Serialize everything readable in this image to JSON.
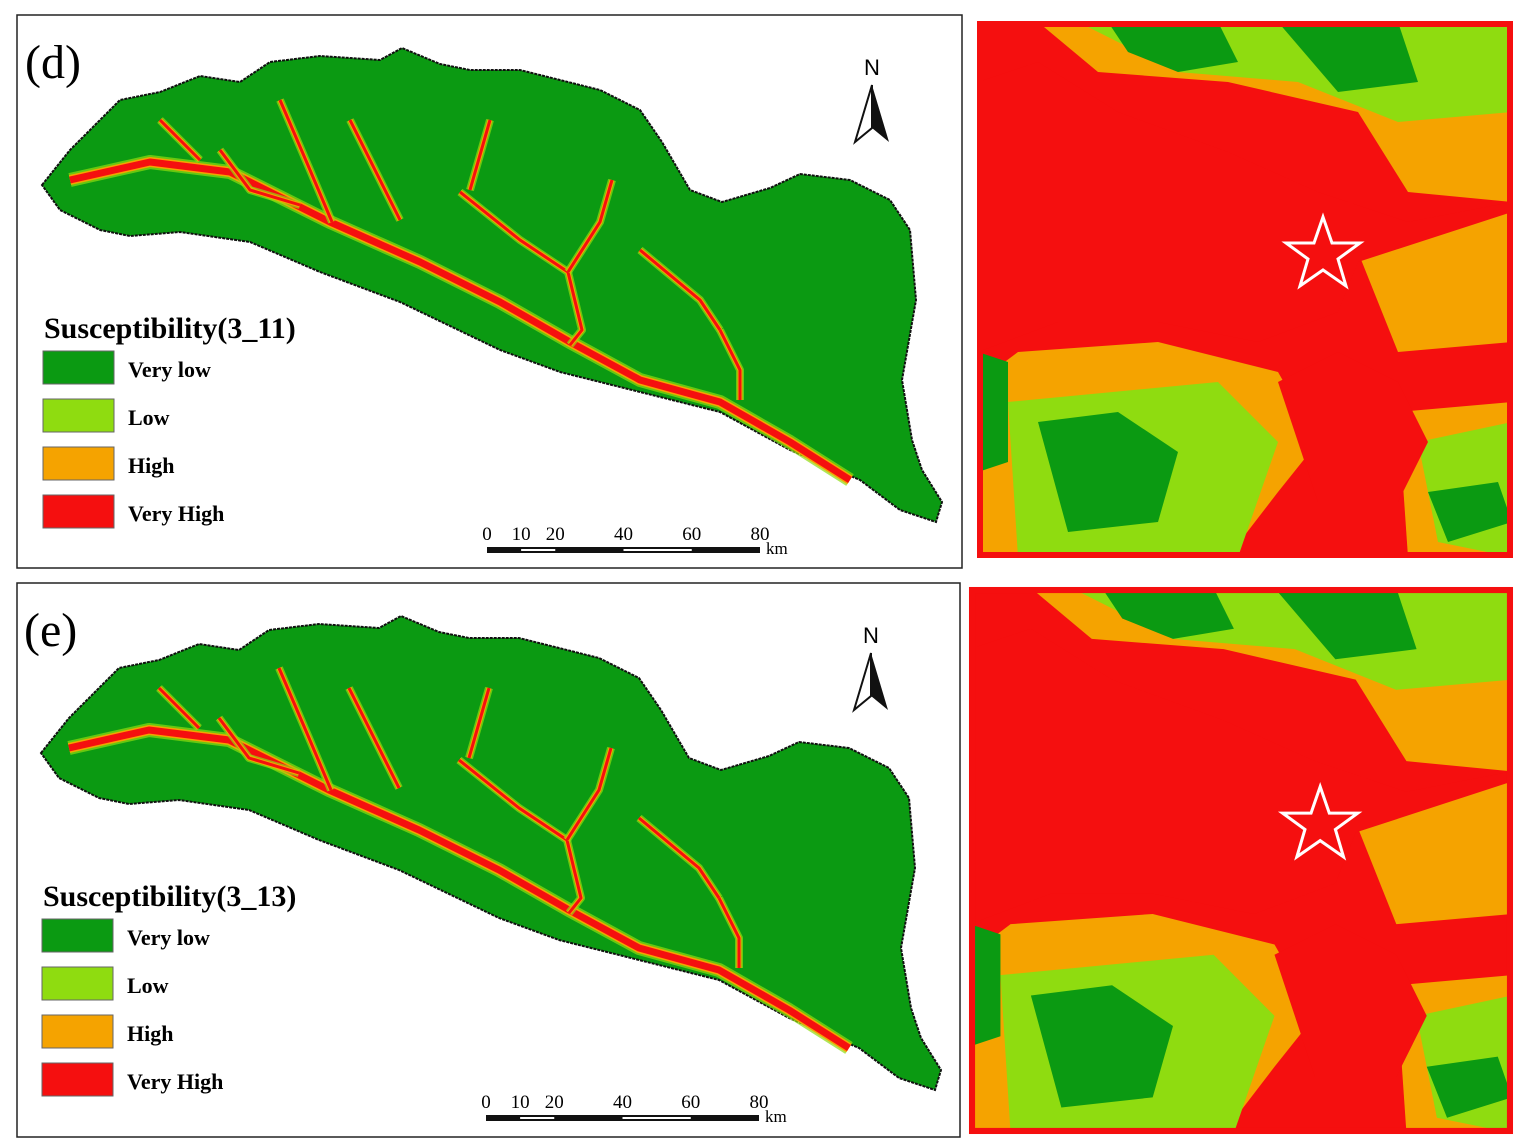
{
  "panels": [
    {
      "label": "(d)",
      "legend_title": "Susceptibility(3_11)",
      "legend": [
        {
          "name": "Very low",
          "color": "#0b9a12"
        },
        {
          "name": "Low",
          "color": "#8fdc10"
        },
        {
          "name": "High",
          "color": "#f5a300"
        },
        {
          "name": "Very High",
          "color": "#f50f0f"
        }
      ],
      "north": "N",
      "scale_ticks": [
        0,
        10,
        20,
        40,
        60,
        80
      ],
      "scale_unit": "km"
    },
    {
      "label": "(e)",
      "legend_title": "Susceptibility(3_13)",
      "legend": [
        {
          "name": "Very low",
          "color": "#0b9a12"
        },
        {
          "name": "Low",
          "color": "#8fdc10"
        },
        {
          "name": "High",
          "color": "#f5a300"
        },
        {
          "name": "Very High",
          "color": "#f50f0f"
        }
      ],
      "north": "N",
      "scale_ticks": [
        0,
        10,
        20,
        40,
        60,
        80
      ],
      "scale_unit": "km"
    }
  ]
}
